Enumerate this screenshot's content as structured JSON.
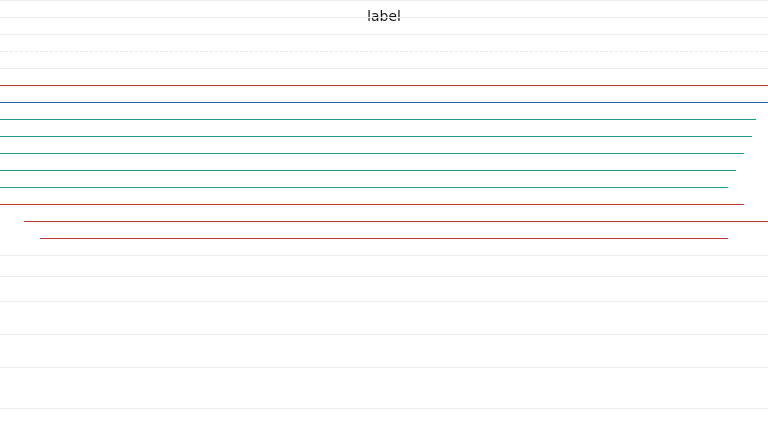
{
  "label": "label",
  "colors": {
    "background": "#ffffff",
    "rule": "#ececec",
    "red": "#c0392b",
    "blue": "#1f5fa8",
    "teal": "#1a9a8a"
  },
  "lines": [
    {
      "color": "red"
    },
    {
      "color": "blue"
    },
    {
      "color": "teal"
    },
    {
      "color": "teal"
    },
    {
      "color": "teal"
    },
    {
      "color": "teal"
    },
    {
      "color": "teal"
    },
    {
      "color": "red"
    },
    {
      "color": "red"
    },
    {
      "color": "red"
    }
  ]
}
